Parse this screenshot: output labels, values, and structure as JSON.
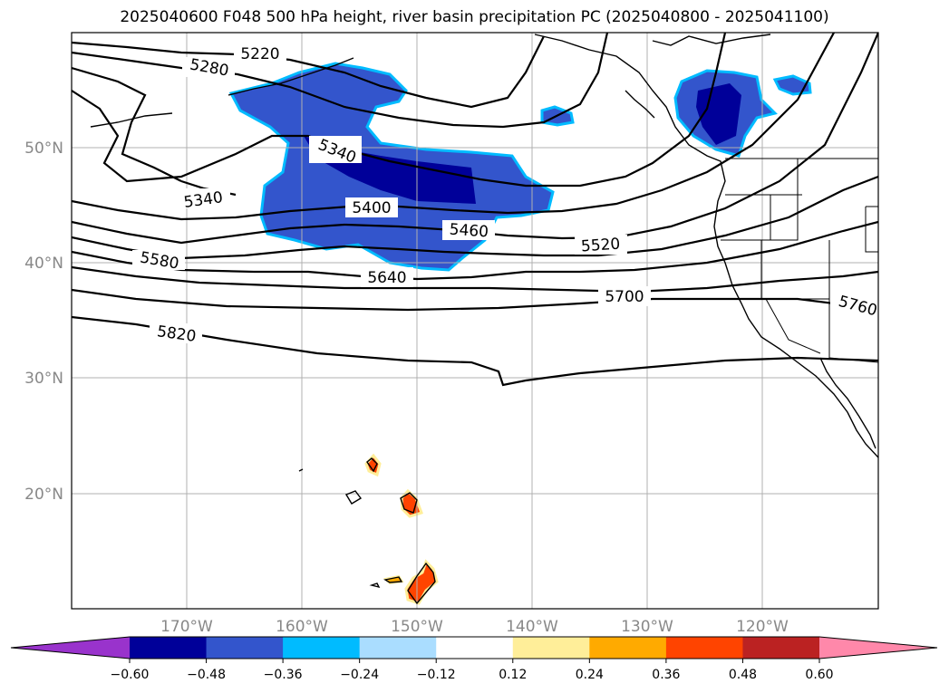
{
  "title": "2025040600 F048 500 hPa height, river basin precipitation PC (2025040800 - 2025041100)",
  "lat_labels": [
    "50°N",
    "40°N",
    "30°N",
    "20°N"
  ],
  "lon_labels": [
    "170°W",
    "160°W",
    "150°W",
    "140°W",
    "130°W",
    "120°W"
  ],
  "contour_labels": [
    "5220",
    "5280",
    "5340",
    "5340",
    "5400",
    "5460",
    "5520",
    "5580",
    "5640",
    "5700",
    "5760",
    "5820"
  ],
  "colorbar": {
    "ticks": [
      "−0.60",
      "−0.48",
      "−0.36",
      "−0.24",
      "−0.12",
      "0.12",
      "0.24",
      "0.36",
      "0.48",
      "0.60"
    ],
    "colors": [
      "#9933cc",
      "#000099",
      "#3355cc",
      "#00bbff",
      "#aaddff",
      "#ffffff",
      "#ffee99",
      "#ffaa00",
      "#ff4400",
      "#bb2222",
      "#ff88aa"
    ]
  }
}
